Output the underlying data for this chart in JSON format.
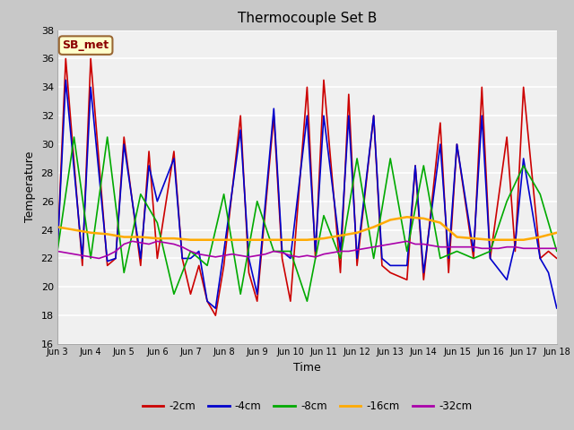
{
  "title": "Thermocouple Set B",
  "xlabel": "Time",
  "ylabel": "Temperature",
  "annotation": "SB_met",
  "ylim": [
    16,
    38
  ],
  "xlim": [
    0,
    15
  ],
  "xtick_labels": [
    "Jun 3",
    "Jun 4",
    "Jun 5",
    "Jun 6",
    "Jun 7",
    "Jun 8",
    "Jun 9",
    "Jun 10",
    "Jun 11",
    "Jun 12",
    "Jun 13",
    "Jun 14",
    "Jun 15",
    "Jun 16",
    "Jun 17",
    "Jun 18"
  ],
  "xtick_positions": [
    0,
    1,
    2,
    3,
    4,
    5,
    6,
    7,
    8,
    9,
    10,
    11,
    12,
    13,
    14,
    15
  ],
  "fig_bg": "#c8c8c8",
  "plot_bg": "#f0f0f0",
  "grid_color": "#ffffff",
  "series": [
    {
      "label": "-2cm",
      "color": "#cc0000",
      "lw": 1.2,
      "x": [
        0,
        0.25,
        0.75,
        1.0,
        1.5,
        1.75,
        2.0,
        2.5,
        2.75,
        3.0,
        3.5,
        3.75,
        4.0,
        4.25,
        4.5,
        4.75,
        5.0,
        5.5,
        5.75,
        6.0,
        6.5,
        6.75,
        7.0,
        7.5,
        7.75,
        8.0,
        8.5,
        8.75,
        9.0,
        9.5,
        9.75,
        10.0,
        10.5,
        10.75,
        11.0,
        11.5,
        11.75,
        12.0,
        12.5,
        12.75,
        13.0,
        13.5,
        13.75,
        14.0,
        14.5,
        14.75,
        15.0
      ],
      "y": [
        22.5,
        36.0,
        21.5,
        36.0,
        21.5,
        22.0,
        30.5,
        21.5,
        29.5,
        22.0,
        29.5,
        22.0,
        19.5,
        21.5,
        19.0,
        18.0,
        21.5,
        32.0,
        21.0,
        19.0,
        32.0,
        22.0,
        19.0,
        34.0,
        22.0,
        34.5,
        21.0,
        33.5,
        21.5,
        32.0,
        21.5,
        21.0,
        20.5,
        28.5,
        20.5,
        31.5,
        21.0,
        30.0,
        22.0,
        34.0,
        22.0,
        30.5,
        22.5,
        34.0,
        22.0,
        22.5,
        22.0
      ]
    },
    {
      "label": "-4cm",
      "color": "#0000cc",
      "lw": 1.2,
      "x": [
        0,
        0.25,
        0.75,
        1.0,
        1.5,
        1.75,
        2.0,
        2.5,
        2.75,
        3.0,
        3.5,
        3.75,
        4.0,
        4.25,
        4.5,
        4.75,
        5.0,
        5.5,
        5.75,
        6.0,
        6.5,
        6.75,
        7.0,
        7.5,
        7.75,
        8.0,
        8.5,
        8.75,
        9.0,
        9.5,
        9.75,
        10.0,
        10.5,
        10.75,
        11.0,
        11.5,
        11.75,
        12.0,
        12.5,
        12.75,
        13.0,
        13.5,
        13.75,
        14.0,
        14.5,
        14.75,
        15.0
      ],
      "y": [
        22.5,
        34.5,
        22.0,
        34.0,
        21.8,
        22.0,
        30.0,
        22.0,
        28.5,
        26.0,
        29.0,
        22.0,
        22.0,
        22.5,
        19.0,
        18.5,
        22.5,
        31.0,
        22.0,
        19.5,
        32.5,
        22.5,
        22.0,
        32.0,
        22.5,
        32.0,
        22.5,
        32.0,
        22.0,
        32.0,
        22.0,
        21.5,
        21.5,
        28.5,
        21.0,
        30.0,
        22.0,
        30.0,
        22.5,
        32.0,
        22.0,
        20.5,
        23.0,
        29.0,
        22.0,
        21.0,
        18.5
      ]
    },
    {
      "label": "-8cm",
      "color": "#00aa00",
      "lw": 1.2,
      "x": [
        0,
        0.5,
        1.0,
        1.5,
        2.0,
        2.5,
        3.0,
        3.5,
        4.0,
        4.5,
        5.0,
        5.5,
        6.0,
        6.5,
        7.0,
        7.5,
        8.0,
        8.5,
        9.0,
        9.5,
        10.0,
        10.5,
        11.0,
        11.5,
        12.0,
        12.5,
        13.0,
        13.5,
        14.0,
        14.5,
        15.0
      ],
      "y": [
        22.5,
        30.5,
        22.0,
        30.5,
        21.0,
        26.5,
        24.5,
        19.5,
        22.5,
        21.5,
        26.5,
        19.5,
        26.0,
        22.5,
        22.5,
        19.0,
        25.0,
        22.0,
        29.0,
        22.0,
        29.0,
        22.5,
        28.5,
        22.0,
        22.5,
        22.0,
        22.5,
        26.0,
        28.5,
        26.5,
        22.5
      ]
    },
    {
      "label": "-16cm",
      "color": "#ffaa00",
      "lw": 1.8,
      "x": [
        0,
        0.5,
        1.0,
        1.5,
        2.0,
        2.5,
        3.0,
        3.5,
        4.0,
        4.5,
        5.0,
        5.5,
        6.0,
        6.5,
        7.0,
        7.5,
        8.0,
        8.5,
        9.0,
        9.5,
        10.0,
        10.5,
        11.0,
        11.5,
        12.0,
        12.5,
        13.0,
        13.5,
        14.0,
        14.5,
        15.0
      ],
      "y": [
        24.2,
        24.0,
        23.8,
        23.7,
        23.5,
        23.5,
        23.4,
        23.4,
        23.3,
        23.3,
        23.3,
        23.3,
        23.3,
        23.3,
        23.3,
        23.3,
        23.4,
        23.6,
        23.8,
        24.2,
        24.7,
        24.9,
        24.8,
        24.5,
        23.5,
        23.4,
        23.3,
        23.3,
        23.3,
        23.5,
        23.8
      ]
    },
    {
      "label": "-32cm",
      "color": "#aa00aa",
      "lw": 1.2,
      "x": [
        0,
        0.25,
        0.5,
        0.75,
        1.0,
        1.25,
        1.5,
        1.75,
        2.0,
        2.25,
        2.5,
        2.75,
        3.0,
        3.25,
        3.5,
        3.75,
        4.0,
        4.25,
        4.5,
        4.75,
        5.0,
        5.25,
        5.5,
        5.75,
        6.0,
        6.25,
        6.5,
        6.75,
        7.0,
        7.25,
        7.5,
        7.75,
        8.0,
        8.25,
        8.5,
        8.75,
        9.0,
        9.25,
        9.5,
        9.75,
        10.0,
        10.25,
        10.5,
        10.75,
        11.0,
        11.25,
        11.5,
        11.75,
        12.0,
        12.25,
        12.5,
        12.75,
        13.0,
        13.25,
        13.5,
        13.75,
        14.0,
        14.25,
        14.5,
        14.75,
        15.0
      ],
      "y": [
        22.5,
        22.4,
        22.3,
        22.2,
        22.1,
        22.0,
        22.2,
        22.5,
        23.0,
        23.2,
        23.1,
        23.0,
        23.2,
        23.1,
        23.0,
        22.8,
        22.5,
        22.3,
        22.2,
        22.1,
        22.2,
        22.3,
        22.2,
        22.1,
        22.2,
        22.3,
        22.5,
        22.4,
        22.2,
        22.1,
        22.2,
        22.1,
        22.3,
        22.4,
        22.5,
        22.5,
        22.6,
        22.7,
        22.8,
        22.9,
        23.0,
        23.1,
        23.2,
        23.0,
        23.0,
        22.9,
        22.8,
        22.8,
        22.8,
        22.8,
        22.8,
        22.7,
        22.7,
        22.7,
        22.8,
        22.8,
        22.7,
        22.7,
        22.7,
        22.7,
        22.7
      ]
    }
  ]
}
